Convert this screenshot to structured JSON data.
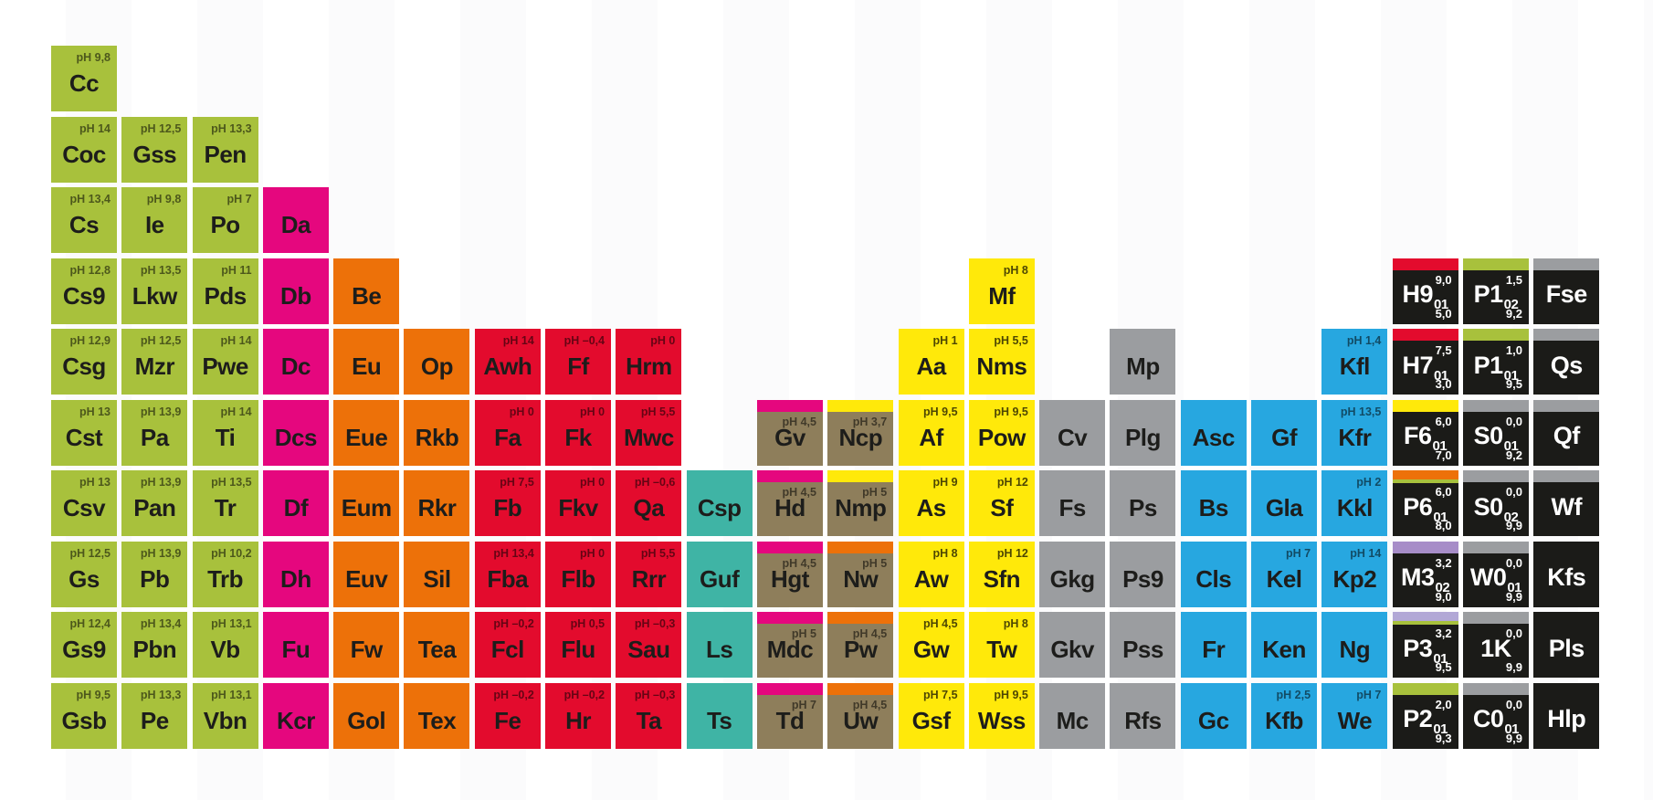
{
  "palette": {
    "green": "#a8c13c",
    "pink": "#e5077e",
    "orange": "#ed7109",
    "red": "#e30b2d",
    "teal": "#3fb4a5",
    "brown": "#8e7e5b",
    "yellow": "#ffe90a",
    "gray": "#9b9da0",
    "blue": "#27a7e0",
    "black": "#1b1b18",
    "purple": "#a78dc8",
    "lavender": "#b2a8d6"
  },
  "tiles": [
    {
      "s": "Cc",
      "c": 1,
      "r": 1,
      "k": "green",
      "ph": "pH 9,8"
    },
    {
      "s": "Coc",
      "c": 1,
      "r": 2,
      "k": "green",
      "ph": "pH 14"
    },
    {
      "s": "Gss",
      "c": 2,
      "r": 2,
      "k": "green",
      "ph": "pH 12,5"
    },
    {
      "s": "Pen",
      "c": 3,
      "r": 2,
      "k": "green",
      "ph": "pH 13,3"
    },
    {
      "s": "Cs",
      "c": 1,
      "r": 3,
      "k": "green",
      "ph": "pH 13,4"
    },
    {
      "s": "Ie",
      "c": 2,
      "r": 3,
      "k": "green",
      "ph": "pH 9,8"
    },
    {
      "s": "Po",
      "c": 3,
      "r": 3,
      "k": "green",
      "ph": "pH 7"
    },
    {
      "s": "Da",
      "c": 4,
      "r": 3,
      "k": "pink"
    },
    {
      "s": "Cs9",
      "c": 1,
      "r": 4,
      "k": "green",
      "ph": "pH 12,8"
    },
    {
      "s": "Lkw",
      "c": 2,
      "r": 4,
      "k": "green",
      "ph": "pH 13,5"
    },
    {
      "s": "Pds",
      "c": 3,
      "r": 4,
      "k": "green",
      "ph": "pH 11"
    },
    {
      "s": "Db",
      "c": 4,
      "r": 4,
      "k": "pink"
    },
    {
      "s": "Be",
      "c": 5,
      "r": 4,
      "k": "orange"
    },
    {
      "s": "Mf",
      "c": 14,
      "r": 4,
      "k": "yellow",
      "ph": "pH 8"
    },
    {
      "s": "H9",
      "c": 20,
      "r": 4,
      "k": "black",
      "st": "red",
      "sub": "01",
      "tn": "9,0",
      "bn": "5,0"
    },
    {
      "s": "P1",
      "c": 21,
      "r": 4,
      "k": "black",
      "st": "green",
      "sub": "02",
      "tn": "1,5",
      "bn": "9,2"
    },
    {
      "s": "Fse",
      "c": 22,
      "r": 4,
      "k": "black",
      "st": "gray"
    },
    {
      "s": "Csg",
      "c": 1,
      "r": 5,
      "k": "green",
      "ph": "pH 12,9"
    },
    {
      "s": "Mzr",
      "c": 2,
      "r": 5,
      "k": "green",
      "ph": "pH 12,5"
    },
    {
      "s": "Pwe",
      "c": 3,
      "r": 5,
      "k": "green",
      "ph": "pH 14"
    },
    {
      "s": "Dc",
      "c": 4,
      "r": 5,
      "k": "pink"
    },
    {
      "s": "Eu",
      "c": 5,
      "r": 5,
      "k": "orange"
    },
    {
      "s": "Op",
      "c": 6,
      "r": 5,
      "k": "orange"
    },
    {
      "s": "Awh",
      "c": 7,
      "r": 5,
      "k": "red",
      "ph": "pH 14"
    },
    {
      "s": "Ff",
      "c": 8,
      "r": 5,
      "k": "red",
      "ph": "pH –0,4"
    },
    {
      "s": "Hrm",
      "c": 9,
      "r": 5,
      "k": "red",
      "ph": "pH 0"
    },
    {
      "s": "Aa",
      "c": 13,
      "r": 5,
      "k": "yellow",
      "ph": "pH 1"
    },
    {
      "s": "Nms",
      "c": 14,
      "r": 5,
      "k": "yellow",
      "ph": "pH 5,5"
    },
    {
      "s": "Mp",
      "c": 16,
      "r": 5,
      "k": "gray"
    },
    {
      "s": "Kfl",
      "c": 19,
      "r": 5,
      "k": "blue",
      "ph": "pH 1,4"
    },
    {
      "s": "H7",
      "c": 20,
      "r": 5,
      "k": "black",
      "st": "red",
      "sub": "01",
      "tn": "7,5",
      "bn": "3,0"
    },
    {
      "s": "P1",
      "c": 21,
      "r": 5,
      "k": "black",
      "st": "green",
      "sub": "01",
      "tn": "1,0",
      "bn": "9,5"
    },
    {
      "s": "Qs",
      "c": 22,
      "r": 5,
      "k": "black",
      "st": "gray"
    },
    {
      "s": "Cst",
      "c": 1,
      "r": 6,
      "k": "green",
      "ph": "pH 13"
    },
    {
      "s": "Pa",
      "c": 2,
      "r": 6,
      "k": "green",
      "ph": "pH 13,9"
    },
    {
      "s": "Ti",
      "c": 3,
      "r": 6,
      "k": "green",
      "ph": "pH 14"
    },
    {
      "s": "Dcs",
      "c": 4,
      "r": 6,
      "k": "pink"
    },
    {
      "s": "Eue",
      "c": 5,
      "r": 6,
      "k": "orange"
    },
    {
      "s": "Rkb",
      "c": 6,
      "r": 6,
      "k": "orange"
    },
    {
      "s": "Fa",
      "c": 7,
      "r": 6,
      "k": "red",
      "ph": "pH 0"
    },
    {
      "s": "Fk",
      "c": 8,
      "r": 6,
      "k": "red",
      "ph": "pH 0"
    },
    {
      "s": "Mwc",
      "c": 9,
      "r": 6,
      "k": "red",
      "ph": "pH 5,5"
    },
    {
      "s": "Gv",
      "c": 11,
      "r": 6,
      "k": "brown",
      "ph": "pH 4,5",
      "st": "pink"
    },
    {
      "s": "Ncp",
      "c": 12,
      "r": 6,
      "k": "brown",
      "ph": "pH 3,7",
      "st": "yellow"
    },
    {
      "s": "Af",
      "c": 13,
      "r": 6,
      "k": "yellow",
      "ph": "pH 9,5"
    },
    {
      "s": "Pow",
      "c": 14,
      "r": 6,
      "k": "yellow",
      "ph": "pH 9,5"
    },
    {
      "s": "Cv",
      "c": 15,
      "r": 6,
      "k": "gray"
    },
    {
      "s": "Plg",
      "c": 16,
      "r": 6,
      "k": "gray"
    },
    {
      "s": "Asc",
      "c": 17,
      "r": 6,
      "k": "blue"
    },
    {
      "s": "Gf",
      "c": 18,
      "r": 6,
      "k": "blue"
    },
    {
      "s": "Kfr",
      "c": 19,
      "r": 6,
      "k": "blue",
      "ph": "pH 13,5"
    },
    {
      "s": "F6",
      "c": 20,
      "r": 6,
      "k": "black",
      "st": "yellow",
      "sub": "01",
      "tn": "6,0",
      "bn": "7,0"
    },
    {
      "s": "S0",
      "c": 21,
      "r": 6,
      "k": "black",
      "st": "gray",
      "sub": "01",
      "tn": "0,0",
      "bn": "9,2"
    },
    {
      "s": "Qf",
      "c": 22,
      "r": 6,
      "k": "black",
      "st": "gray"
    },
    {
      "s": "Csv",
      "c": 1,
      "r": 7,
      "k": "green",
      "ph": "pH 13"
    },
    {
      "s": "Pan",
      "c": 2,
      "r": 7,
      "k": "green",
      "ph": "pH 13,9"
    },
    {
      "s": "Tr",
      "c": 3,
      "r": 7,
      "k": "green",
      "ph": "pH 13,5"
    },
    {
      "s": "Df",
      "c": 4,
      "r": 7,
      "k": "pink"
    },
    {
      "s": "Eum",
      "c": 5,
      "r": 7,
      "k": "orange"
    },
    {
      "s": "Rkr",
      "c": 6,
      "r": 7,
      "k": "orange"
    },
    {
      "s": "Fb",
      "c": 7,
      "r": 7,
      "k": "red",
      "ph": "pH 7,5"
    },
    {
      "s": "Fkv",
      "c": 8,
      "r": 7,
      "k": "red",
      "ph": "pH 0"
    },
    {
      "s": "Qa",
      "c": 9,
      "r": 7,
      "k": "red",
      "ph": "pH –0,6"
    },
    {
      "s": "Csp",
      "c": 10,
      "r": 7,
      "k": "teal"
    },
    {
      "s": "Hd",
      "c": 11,
      "r": 7,
      "k": "brown",
      "ph": "pH 4,5",
      "st": "pink"
    },
    {
      "s": "Nmp",
      "c": 12,
      "r": 7,
      "k": "brown",
      "ph": "pH 5",
      "st": "yellow"
    },
    {
      "s": "As",
      "c": 13,
      "r": 7,
      "k": "yellow",
      "ph": "pH 9"
    },
    {
      "s": "Sf",
      "c": 14,
      "r": 7,
      "k": "yellow",
      "ph": "pH 12"
    },
    {
      "s": "Fs",
      "c": 15,
      "r": 7,
      "k": "gray"
    },
    {
      "s": "Ps",
      "c": 16,
      "r": 7,
      "k": "gray"
    },
    {
      "s": "Bs",
      "c": 17,
      "r": 7,
      "k": "blue"
    },
    {
      "s": "Gla",
      "c": 18,
      "r": 7,
      "k": "blue"
    },
    {
      "s": "Kkl",
      "c": 19,
      "r": 7,
      "k": "blue",
      "ph": "pH 2"
    },
    {
      "s": "P6",
      "c": 20,
      "r": 7,
      "k": "black",
      "st": "orange",
      "st2": true,
      "sub": "01",
      "tn": "6,0",
      "bn": "8,0"
    },
    {
      "s": "S0",
      "c": 21,
      "r": 7,
      "k": "black",
      "st": "gray",
      "sub": "02",
      "tn": "0,0",
      "bn": "9,9"
    },
    {
      "s": "Wf",
      "c": 22,
      "r": 7,
      "k": "black",
      "st": "gray"
    },
    {
      "s": "Gs",
      "c": 1,
      "r": 8,
      "k": "green",
      "ph": "pH 12,5"
    },
    {
      "s": "Pb",
      "c": 2,
      "r": 8,
      "k": "green",
      "ph": "pH 13,9"
    },
    {
      "s": "Trb",
      "c": 3,
      "r": 8,
      "k": "green",
      "ph": "pH 10,2"
    },
    {
      "s": "Dh",
      "c": 4,
      "r": 8,
      "k": "pink"
    },
    {
      "s": "Euv",
      "c": 5,
      "r": 8,
      "k": "orange"
    },
    {
      "s": "Sil",
      "c": 6,
      "r": 8,
      "k": "orange"
    },
    {
      "s": "Fba",
      "c": 7,
      "r": 8,
      "k": "red",
      "ph": "pH 13,4"
    },
    {
      "s": "Flb",
      "c": 8,
      "r": 8,
      "k": "red",
      "ph": "pH 0"
    },
    {
      "s": "Rrr",
      "c": 9,
      "r": 8,
      "k": "red",
      "ph": "pH 5,5"
    },
    {
      "s": "Guf",
      "c": 10,
      "r": 8,
      "k": "teal"
    },
    {
      "s": "Hgt",
      "c": 11,
      "r": 8,
      "k": "brown",
      "ph": "pH 4,5",
      "st": "pink"
    },
    {
      "s": "Nw",
      "c": 12,
      "r": 8,
      "k": "brown",
      "ph": "pH 5",
      "st": "orange"
    },
    {
      "s": "Aw",
      "c": 13,
      "r": 8,
      "k": "yellow",
      "ph": "pH 8"
    },
    {
      "s": "Sfn",
      "c": 14,
      "r": 8,
      "k": "yellow",
      "ph": "pH 12"
    },
    {
      "s": "Gkg",
      "c": 15,
      "r": 8,
      "k": "gray"
    },
    {
      "s": "Ps9",
      "c": 16,
      "r": 8,
      "k": "gray"
    },
    {
      "s": "Cls",
      "c": 17,
      "r": 8,
      "k": "blue"
    },
    {
      "s": "Kel",
      "c": 18,
      "r": 8,
      "k": "blue",
      "ph": "pH 7"
    },
    {
      "s": "Kp2",
      "c": 19,
      "r": 8,
      "k": "blue",
      "ph": "pH 14"
    },
    {
      "s": "M3",
      "c": 20,
      "r": 8,
      "k": "black",
      "st": "purple",
      "sub": "02",
      "tn": "3,2",
      "bn": "9,0"
    },
    {
      "s": "W0",
      "c": 21,
      "r": 8,
      "k": "black",
      "st": "gray",
      "sub": "01",
      "tn": "0,0",
      "bn": "9,9"
    },
    {
      "s": "Kfs",
      "c": 22,
      "r": 8,
      "k": "black"
    },
    {
      "s": "Gs9",
      "c": 1,
      "r": 9,
      "k": "green",
      "ph": "pH 12,4"
    },
    {
      "s": "Pbn",
      "c": 2,
      "r": 9,
      "k": "green",
      "ph": "pH 13,4"
    },
    {
      "s": "Vb",
      "c": 3,
      "r": 9,
      "k": "green",
      "ph": "pH 13,1"
    },
    {
      "s": "Fu",
      "c": 4,
      "r": 9,
      "k": "pink"
    },
    {
      "s": "Fw",
      "c": 5,
      "r": 9,
      "k": "orange"
    },
    {
      "s": "Tea",
      "c": 6,
      "r": 9,
      "k": "orange"
    },
    {
      "s": "Fcl",
      "c": 7,
      "r": 9,
      "k": "red",
      "ph": "pH –0,2"
    },
    {
      "s": "Flu",
      "c": 8,
      "r": 9,
      "k": "red",
      "ph": "pH 0,5"
    },
    {
      "s": "Sau",
      "c": 9,
      "r": 9,
      "k": "red",
      "ph": "pH –0,3"
    },
    {
      "s": "Ls",
      "c": 10,
      "r": 9,
      "k": "teal"
    },
    {
      "s": "Mdc",
      "c": 11,
      "r": 9,
      "k": "brown",
      "ph": "pH 5",
      "st": "pink"
    },
    {
      "s": "Pw",
      "c": 12,
      "r": 9,
      "k": "brown",
      "ph": "pH 4,5",
      "st": "orange"
    },
    {
      "s": "Gw",
      "c": 13,
      "r": 9,
      "k": "yellow",
      "ph": "pH 4,5"
    },
    {
      "s": "Tw",
      "c": 14,
      "r": 9,
      "k": "yellow",
      "ph": "pH 8"
    },
    {
      "s": "Gkv",
      "c": 15,
      "r": 9,
      "k": "gray"
    },
    {
      "s": "Pss",
      "c": 16,
      "r": 9,
      "k": "gray"
    },
    {
      "s": "Fr",
      "c": 17,
      "r": 9,
      "k": "blue"
    },
    {
      "s": "Ken",
      "c": 18,
      "r": 9,
      "k": "blue"
    },
    {
      "s": "Ng",
      "c": 19,
      "r": 9,
      "k": "blue"
    },
    {
      "s": "P3",
      "c": 20,
      "r": 9,
      "k": "black",
      "st": "lavender",
      "st2": true,
      "sub": "01",
      "tn": "3,2",
      "bn": "9,5"
    },
    {
      "s": "1K",
      "c": 21,
      "r": 9,
      "k": "black",
      "st": "gray",
      "tn": "0,0",
      "bn": "9,9"
    },
    {
      "s": "Pls",
      "c": 22,
      "r": 9,
      "k": "black"
    },
    {
      "s": "Gsb",
      "c": 1,
      "r": 10,
      "k": "green",
      "ph": "pH 9,5"
    },
    {
      "s": "Pe",
      "c": 2,
      "r": 10,
      "k": "green",
      "ph": "pH 13,3"
    },
    {
      "s": "Vbn",
      "c": 3,
      "r": 10,
      "k": "green",
      "ph": "pH 13,1"
    },
    {
      "s": "Kcr",
      "c": 4,
      "r": 10,
      "k": "pink"
    },
    {
      "s": "Gol",
      "c": 5,
      "r": 10,
      "k": "orange"
    },
    {
      "s": "Tex",
      "c": 6,
      "r": 10,
      "k": "orange"
    },
    {
      "s": "Fe",
      "c": 7,
      "r": 10,
      "k": "red",
      "ph": "pH –0,2"
    },
    {
      "s": "Hr",
      "c": 8,
      "r": 10,
      "k": "red",
      "ph": "pH –0,2"
    },
    {
      "s": "Ta",
      "c": 9,
      "r": 10,
      "k": "red",
      "ph": "pH –0,3"
    },
    {
      "s": "Ts",
      "c": 10,
      "r": 10,
      "k": "teal"
    },
    {
      "s": "Td",
      "c": 11,
      "r": 10,
      "k": "brown",
      "ph": "pH 7",
      "st": "pink"
    },
    {
      "s": "Uw",
      "c": 12,
      "r": 10,
      "k": "brown",
      "ph": "pH 4,5",
      "st": "orange"
    },
    {
      "s": "Gsf",
      "c": 13,
      "r": 10,
      "k": "yellow",
      "ph": "pH 7,5"
    },
    {
      "s": "Wss",
      "c": 14,
      "r": 10,
      "k": "yellow",
      "ph": "pH 9,5"
    },
    {
      "s": "Mc",
      "c": 15,
      "r": 10,
      "k": "gray"
    },
    {
      "s": "Rfs",
      "c": 16,
      "r": 10,
      "k": "gray"
    },
    {
      "s": "Gc",
      "c": 17,
      "r": 10,
      "k": "blue"
    },
    {
      "s": "Kfb",
      "c": 18,
      "r": 10,
      "k": "blue",
      "ph": "pH 2,5"
    },
    {
      "s": "We",
      "c": 19,
      "r": 10,
      "k": "blue",
      "ph": "pH 7"
    },
    {
      "s": "P2",
      "c": 20,
      "r": 10,
      "k": "black",
      "st": "green",
      "sub": "01",
      "tn": "2,0",
      "bn": "9,3"
    },
    {
      "s": "C0",
      "c": 21,
      "r": 10,
      "k": "black",
      "st": "gray",
      "sub": "01",
      "tn": "0,0",
      "bn": "9,9"
    },
    {
      "s": "Hlp",
      "c": 22,
      "r": 10,
      "k": "black"
    }
  ]
}
